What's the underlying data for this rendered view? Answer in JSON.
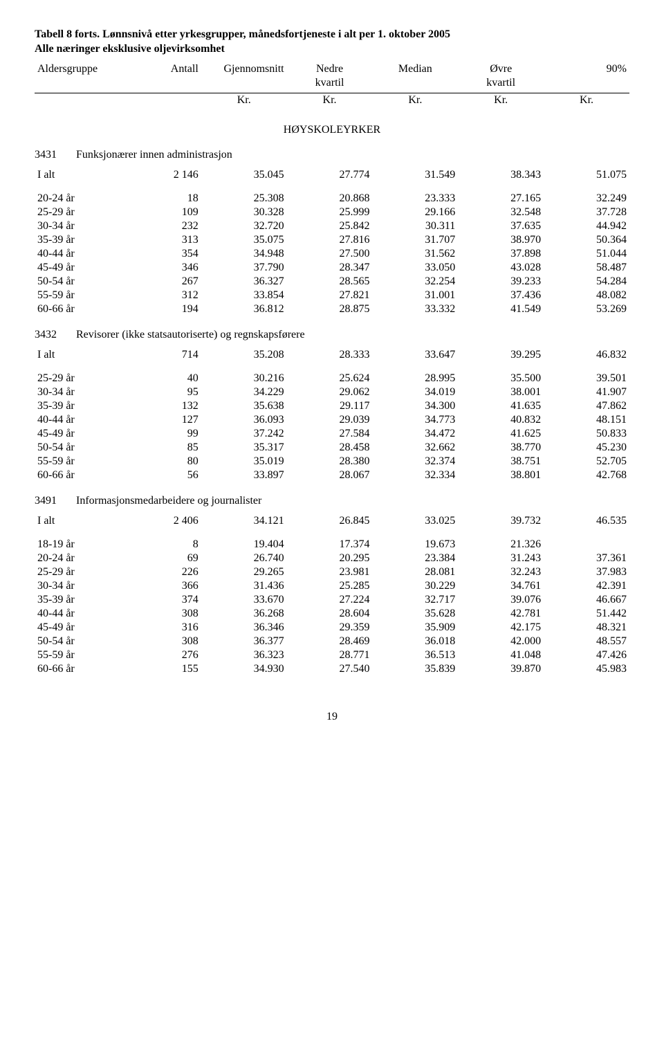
{
  "title": {
    "line1": "Tabell 8 forts. Lønnsnivå etter yrkesgrupper, månedsfortjeneste i alt per 1. oktober 2005",
    "line2": "Alle næringer eksklusive oljevirksomhet"
  },
  "columns": {
    "c1": "Aldersgruppe",
    "c2": "Antall",
    "c3": "Gjennomsnitt",
    "c4_top": "Nedre",
    "c4_bot": "kvartil",
    "c5": "Median",
    "c6_top": "Øvre",
    "c6_bot": "kvartil",
    "c7": "90%",
    "unit": "Kr."
  },
  "section_header": "HØYSKOLEYRKER",
  "groups": [
    {
      "code": "3431",
      "name": "Funksjonærer innen administrasjon",
      "total_label": "I alt",
      "total": [
        "2 146",
        "35.045",
        "27.774",
        "31.549",
        "38.343",
        "51.075"
      ],
      "rows": [
        [
          "20-24 år",
          "18",
          "25.308",
          "20.868",
          "23.333",
          "27.165",
          "32.249"
        ],
        [
          "25-29 år",
          "109",
          "30.328",
          "25.999",
          "29.166",
          "32.548",
          "37.728"
        ],
        [
          "30-34 år",
          "232",
          "32.720",
          "25.842",
          "30.311",
          "37.635",
          "44.942"
        ],
        [
          "35-39 år",
          "313",
          "35.075",
          "27.816",
          "31.707",
          "38.970",
          "50.364"
        ],
        [
          "40-44 år",
          "354",
          "34.948",
          "27.500",
          "31.562",
          "37.898",
          "51.044"
        ],
        [
          "45-49 år",
          "346",
          "37.790",
          "28.347",
          "33.050",
          "43.028",
          "58.487"
        ],
        [
          "50-54 år",
          "267",
          "36.327",
          "28.565",
          "32.254",
          "39.233",
          "54.284"
        ],
        [
          "55-59 år",
          "312",
          "33.854",
          "27.821",
          "31.001",
          "37.436",
          "48.082"
        ],
        [
          "60-66 år",
          "194",
          "36.812",
          "28.875",
          "33.332",
          "41.549",
          "53.269"
        ]
      ]
    },
    {
      "code": "3432",
      "name": "Revisorer (ikke statsautoriserte) og regnskapsførere",
      "total_label": "I alt",
      "total": [
        "714",
        "35.208",
        "28.333",
        "33.647",
        "39.295",
        "46.832"
      ],
      "rows": [
        [
          "25-29 år",
          "40",
          "30.216",
          "25.624",
          "28.995",
          "35.500",
          "39.501"
        ],
        [
          "30-34 år",
          "95",
          "34.229",
          "29.062",
          "34.019",
          "38.001",
          "41.907"
        ],
        [
          "35-39 år",
          "132",
          "35.638",
          "29.117",
          "34.300",
          "41.635",
          "47.862"
        ],
        [
          "40-44 år",
          "127",
          "36.093",
          "29.039",
          "34.773",
          "40.832",
          "48.151"
        ],
        [
          "45-49 år",
          "99",
          "37.242",
          "27.584",
          "34.472",
          "41.625",
          "50.833"
        ],
        [
          "50-54 år",
          "85",
          "35.317",
          "28.458",
          "32.662",
          "38.770",
          "45.230"
        ],
        [
          "55-59 år",
          "80",
          "35.019",
          "28.380",
          "32.374",
          "38.751",
          "52.705"
        ],
        [
          "60-66 år",
          "56",
          "33.897",
          "28.067",
          "32.334",
          "38.801",
          "42.768"
        ]
      ]
    },
    {
      "code": "3491",
      "name": "Informasjonsmedarbeidere og journalister",
      "total_label": "I alt",
      "total": [
        "2 406",
        "34.121",
        "26.845",
        "33.025",
        "39.732",
        "46.535"
      ],
      "rows": [
        [
          "18-19 år",
          "8",
          "19.404",
          "17.374",
          "19.673",
          "21.326",
          ""
        ],
        [
          "20-24 år",
          "69",
          "26.740",
          "20.295",
          "23.384",
          "31.243",
          "37.361"
        ],
        [
          "25-29 år",
          "226",
          "29.265",
          "23.981",
          "28.081",
          "32.243",
          "37.983"
        ],
        [
          "30-34 år",
          "366",
          "31.436",
          "25.285",
          "30.229",
          "34.761",
          "42.391"
        ],
        [
          "35-39 år",
          "374",
          "33.670",
          "27.224",
          "32.717",
          "39.076",
          "46.667"
        ],
        [
          "40-44 år",
          "308",
          "36.268",
          "28.604",
          "35.628",
          "42.781",
          "51.442"
        ],
        [
          "45-49 år",
          "316",
          "36.346",
          "29.359",
          "35.909",
          "42.175",
          "48.321"
        ],
        [
          "50-54 år",
          "308",
          "36.377",
          "28.469",
          "36.018",
          "42.000",
          "48.557"
        ],
        [
          "55-59 år",
          "276",
          "36.323",
          "28.771",
          "36.513",
          "41.048",
          "47.426"
        ],
        [
          "60-66 år",
          "155",
          "34.930",
          "27.540",
          "35.839",
          "39.870",
          "45.983"
        ]
      ]
    }
  ],
  "page_number": "19"
}
